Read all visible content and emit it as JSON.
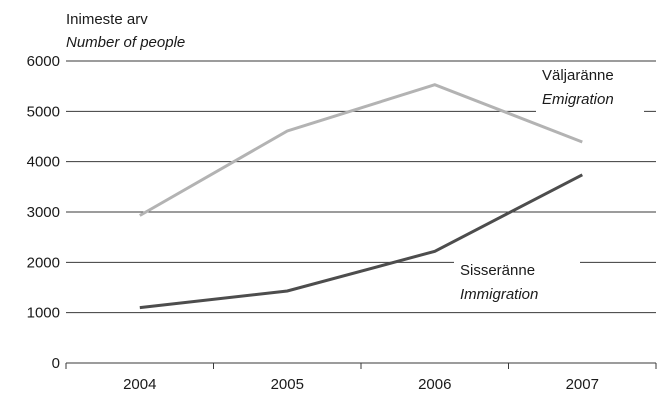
{
  "chart_data": {
    "type": "line",
    "ylabel": "Inimeste arv",
    "ylabel_en": "Number of people",
    "categories": [
      "2004",
      "2005",
      "2006",
      "2007"
    ],
    "ylim": [
      0,
      6000
    ],
    "yticks": [
      0,
      1000,
      2000,
      3000,
      4000,
      5000,
      6000
    ],
    "grid": true,
    "series": [
      {
        "name": "Väljaränne",
        "name_en": "Emigration",
        "color": "#b3b3b3",
        "values": [
          2930,
          4610,
          5530,
          4390
        ]
      },
      {
        "name": "Sisseränne",
        "name_en": "Immigration",
        "color": "#4d4d4d",
        "values": [
          1100,
          1430,
          2220,
          3740
        ]
      }
    ]
  }
}
